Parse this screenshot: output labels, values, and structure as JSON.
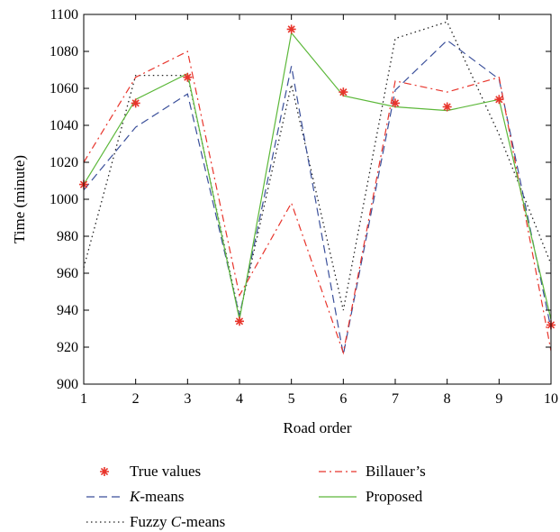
{
  "chart_data": {
    "type": "line",
    "xlabel": "Road order",
    "ylabel": "Time (minute)",
    "x": [
      1,
      2,
      3,
      4,
      5,
      6,
      7,
      8,
      9,
      10
    ],
    "xlim": [
      1,
      10
    ],
    "ylim": [
      900,
      1100
    ],
    "x_ticks": [
      "1",
      "2",
      "3",
      "4",
      "5",
      "6",
      "7",
      "8",
      "9",
      "10"
    ],
    "y_ticks": [
      "900",
      "920",
      "940",
      "960",
      "980",
      "1000",
      "1020",
      "1040",
      "1060",
      "1080",
      "1100"
    ],
    "grid": false,
    "legend_position": "bottom",
    "series": [
      {
        "name": "True values",
        "style": "marker",
        "color": "#e8352c",
        "values": [
          1008,
          1052,
          1066,
          934,
          1092,
          1058,
          1052,
          1050,
          1054,
          932
        ]
      },
      {
        "name": "K-means",
        "style": "dashed",
        "color": "#3a4f9a",
        "values": [
          1005,
          1039,
          1057,
          937,
          1072,
          916,
          1059,
          1086,
          1065,
          930
        ]
      },
      {
        "name": "Fuzzy C-means",
        "style": "dotted",
        "color": "#222222",
        "values": [
          963,
          1067,
          1067,
          937,
          1062,
          940,
          1087,
          1096,
          1035,
          965
        ]
      },
      {
        "name": "Billauer’s",
        "style": "dashdot",
        "color": "#e8352c",
        "values": [
          1020,
          1066,
          1080,
          948,
          998,
          917,
          1064,
          1058,
          1066,
          918
        ]
      },
      {
        "name": "Proposed",
        "style": "solid",
        "color": "#5cb83a",
        "values": [
          1008,
          1054,
          1068,
          935,
          1090,
          1056,
          1050,
          1048,
          1054,
          935
        ]
      }
    ]
  },
  "legend": {
    "left": [
      {
        "series": 0,
        "prefix": "True values",
        "italic": "",
        "suffix": ""
      },
      {
        "series": 1,
        "prefix": "",
        "italic": "K",
        "suffix": "-means"
      },
      {
        "series": 2,
        "prefix": "Fuzzy ",
        "italic": "C",
        "suffix": "-means"
      }
    ],
    "right": [
      {
        "series": 3,
        "prefix": "Billauer’s",
        "italic": "",
        "suffix": ""
      },
      {
        "series": 4,
        "prefix": "Proposed",
        "italic": "",
        "suffix": ""
      }
    ]
  }
}
